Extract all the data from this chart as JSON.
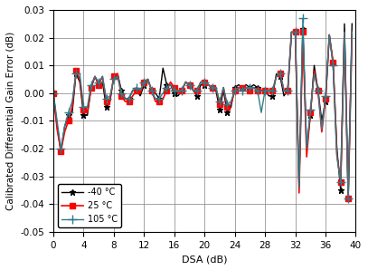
{
  "xlabel": "DSA (dB)",
  "ylabel": "Calibrated Differential Gain Error (dB)",
  "xlim": [
    0,
    40
  ],
  "ylim": [
    -0.05,
    0.03
  ],
  "xticks": [
    0,
    4,
    8,
    12,
    16,
    20,
    24,
    28,
    32,
    36,
    40
  ],
  "yticks": [
    -0.05,
    -0.04,
    -0.03,
    -0.02,
    -0.01,
    0.0,
    0.01,
    0.02,
    0.03
  ],
  "legend_labels": [
    "-40 °C",
    "25 °C",
    "105 °C"
  ],
  "colors": [
    "black",
    "red",
    "#2e7d8c"
  ],
  "markers": [
    "*",
    "s",
    "+"
  ],
  "markersize": [
    5,
    4,
    7
  ],
  "linewidth": [
    1.0,
    1.2,
    1.0
  ],
  "x": [
    0,
    0.5,
    1,
    1.5,
    2,
    2.5,
    3,
    3.5,
    4,
    4.5,
    5,
    5.5,
    6,
    6.5,
    7,
    7.5,
    8,
    8.5,
    9,
    9.5,
    10,
    10.5,
    11,
    11.5,
    12,
    12.5,
    13,
    13.5,
    14,
    14.5,
    15,
    15.5,
    16,
    16.5,
    17,
    17.5,
    18,
    18.5,
    19,
    19.5,
    20,
    20.5,
    21,
    21.5,
    22,
    22.5,
    23,
    23.5,
    24,
    24.5,
    25,
    25.5,
    26,
    26.5,
    27,
    27.5,
    28,
    28.5,
    29,
    29.5,
    30,
    30.5,
    31,
    31.5,
    32,
    32.5,
    33,
    33.5,
    34,
    34.5,
    35,
    35.5,
    36,
    36.5,
    37,
    37.5,
    38,
    38.5,
    39,
    39.5
  ],
  "y_m40": [
    0.0,
    -0.012,
    -0.021,
    -0.012,
    -0.008,
    -0.007,
    0.007,
    0.004,
    -0.008,
    -0.008,
    0.002,
    0.006,
    0.003,
    0.004,
    -0.005,
    -0.003,
    0.006,
    0.007,
    0.001,
    -0.002,
    -0.002,
    0.001,
    0.001,
    -0.001,
    0.003,
    0.005,
    0.001,
    0.0,
    -0.002,
    0.009,
    0.003,
    0.003,
    0.0,
    -0.001,
    0.001,
    0.004,
    0.003,
    0.001,
    -0.001,
    0.003,
    0.003,
    0.003,
    0.002,
    0.001,
    -0.006,
    0.001,
    -0.007,
    -0.005,
    0.002,
    0.003,
    0.002,
    0.003,
    0.002,
    0.003,
    0.002,
    0.001,
    0.001,
    -0.001,
    -0.001,
    0.007,
    0.006,
    -0.001,
    0.001,
    0.022,
    0.022,
    -0.034,
    0.023,
    -0.02,
    -0.008,
    0.01,
    0.001,
    -0.01,
    -0.003,
    0.021,
    0.011,
    -0.02,
    -0.035,
    0.025,
    -0.038,
    0.025
  ],
  "y_25": [
    0.0,
    -0.013,
    -0.021,
    -0.014,
    -0.01,
    -0.005,
    0.008,
    0.005,
    -0.006,
    -0.007,
    0.002,
    0.006,
    0.003,
    0.006,
    -0.003,
    -0.002,
    0.006,
    0.007,
    -0.001,
    -0.003,
    -0.003,
    -0.001,
    0.001,
    0.0,
    0.004,
    0.005,
    0.001,
    -0.003,
    -0.003,
    -0.002,
    0.001,
    0.004,
    0.002,
    0.0,
    0.001,
    0.004,
    0.003,
    0.001,
    0.001,
    0.004,
    0.004,
    0.003,
    0.002,
    0.002,
    -0.004,
    0.002,
    -0.005,
    -0.004,
    0.001,
    0.002,
    0.002,
    0.002,
    0.001,
    0.002,
    0.001,
    0.001,
    0.001,
    0.001,
    0.001,
    0.006,
    0.007,
    0.001,
    0.001,
    0.022,
    0.022,
    -0.036,
    0.022,
    -0.023,
    -0.007,
    0.008,
    0.001,
    -0.014,
    -0.002,
    0.021,
    0.011,
    -0.022,
    -0.032,
    0.022,
    -0.038,
    0.021
  ],
  "y_105": [
    0.0,
    -0.01,
    -0.02,
    -0.012,
    -0.007,
    -0.003,
    0.007,
    0.007,
    -0.005,
    -0.005,
    0.003,
    0.006,
    0.004,
    0.006,
    -0.002,
    -0.001,
    0.005,
    0.006,
    0.0,
    -0.002,
    -0.002,
    0.001,
    0.002,
    0.001,
    0.004,
    0.005,
    0.001,
    -0.002,
    -0.002,
    0.0,
    0.002,
    0.003,
    0.001,
    0.001,
    0.001,
    0.004,
    0.003,
    0.001,
    0.001,
    0.004,
    0.004,
    0.003,
    0.002,
    0.002,
    -0.003,
    0.002,
    -0.004,
    -0.003,
    0.001,
    0.002,
    0.001,
    0.002,
    0.002,
    0.002,
    0.001,
    -0.007,
    0.001,
    0.001,
    0.001,
    0.006,
    0.007,
    0.001,
    0.001,
    0.022,
    0.022,
    -0.034,
    0.027,
    -0.02,
    -0.006,
    0.007,
    0.001,
    -0.013,
    -0.001,
    0.021,
    0.01,
    -0.023,
    -0.032,
    0.022,
    -0.038,
    0.022
  ]
}
